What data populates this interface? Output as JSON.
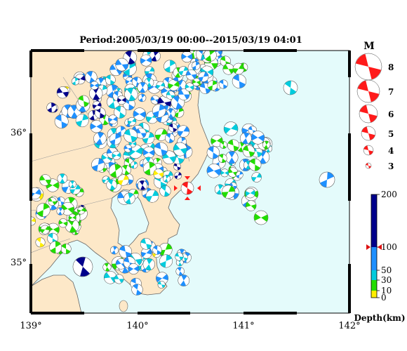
{
  "title": "Period:2005/03/19 00:00--2015/03/19 04:01",
  "map": {
    "lon_range": [
      139,
      142
    ],
    "lat_range": [
      34.6,
      36.6
    ],
    "x_ticks": [
      "139°",
      "140°",
      "141°",
      "142°"
    ],
    "y_ticks": [
      "36°",
      "35°"
    ],
    "colors": {
      "land": "#fde8c8",
      "sea": "#e4fbfb",
      "border": "#000000",
      "coast": "#555555"
    },
    "epicenter_marker": {
      "lon": 140.45,
      "lat": 35.56,
      "color": "#ff1a1a"
    }
  },
  "magnitude_legend": {
    "title": "M",
    "items": [
      {
        "label": "8",
        "m": 8
      },
      {
        "label": "7",
        "m": 7
      },
      {
        "label": "6",
        "m": 6
      },
      {
        "label": "5",
        "m": 5
      },
      {
        "label": "4",
        "m": 4
      },
      {
        "label": "3",
        "m": 3
      }
    ],
    "color": "#ff1a1a"
  },
  "depth_legend": {
    "title": "Depth(km)",
    "ticks": [
      "200",
      "100",
      "50",
      "30",
      "10",
      "0"
    ],
    "bands": [
      {
        "from": 0,
        "to": 10,
        "color": "#ffee00"
      },
      {
        "from": 10,
        "to": 30,
        "color": "#22dd00"
      },
      {
        "from": 30,
        "to": 50,
        "color": "#00ccdd"
      },
      {
        "from": 50,
        "to": 100,
        "color": "#1e90ff"
      },
      {
        "from": 100,
        "to": 200,
        "color": "#00008b"
      }
    ],
    "marker_depth": 100
  }
}
